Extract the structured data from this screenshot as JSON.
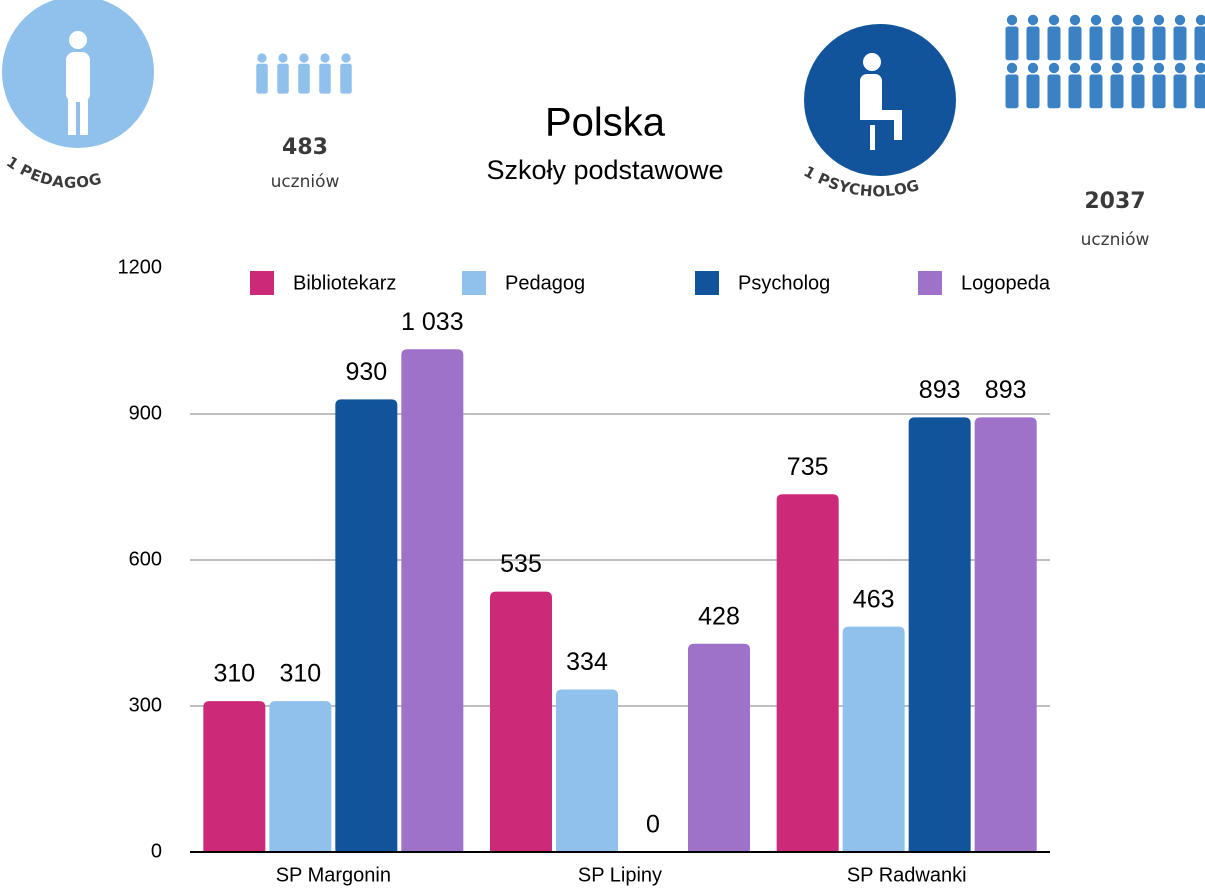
{
  "chart_data": {
    "type": "bar",
    "title": "Polska",
    "subtitle": "Szkoły podstawowe",
    "categories": [
      "SP Margonin",
      "SP Lipiny",
      "SP Radwanki"
    ],
    "series": [
      {
        "name": "Bibliotekarz",
        "color": "#cc2a78",
        "values": [
          310,
          535,
          735
        ]
      },
      {
        "name": "Pedagog",
        "color": "#8fc1ec",
        "values": [
          310,
          334,
          463
        ]
      },
      {
        "name": "Psycholog",
        "color": "#12549c",
        "values": [
          930,
          0,
          893
        ]
      },
      {
        "name": "Logopeda",
        "color": "#9e72c9",
        "values": [
          1033,
          428,
          893
        ],
        "value_labels": [
          "1 033",
          "428",
          "893"
        ]
      }
    ],
    "ylim": [
      0,
      1200
    ],
    "yticks": [
      0,
      300,
      600,
      900,
      1200
    ],
    "grid": true,
    "legend": "top",
    "annotations": [
      {
        "badge": "1 PEDAGOG",
        "count": 483,
        "unit": "uczniów"
      },
      {
        "badge": "1 PSYCHOLOG",
        "count": 2037,
        "unit": "uczniów"
      }
    ]
  }
}
